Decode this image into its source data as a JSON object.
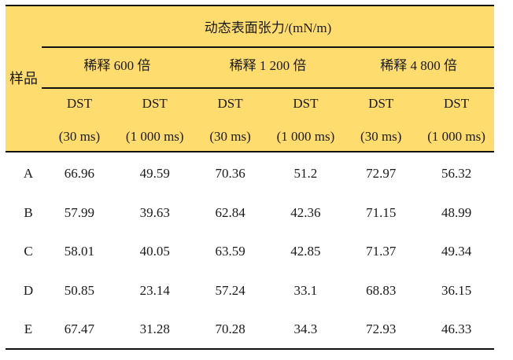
{
  "table": {
    "title": "动态表面张力/(mN/m)",
    "row_header": "样品",
    "groups": [
      "稀释  600 倍",
      "稀释 1 200 倍",
      "稀释 4 800 倍"
    ],
    "subheaders": [
      {
        "line1": "DST",
        "line2": "(30 ms)"
      },
      {
        "line1": "DST",
        "line2": "(1 000 ms)"
      },
      {
        "line1": "DST",
        "line2": "(30 ms)"
      },
      {
        "line1": "DST",
        "line2": "(1 000 ms)"
      },
      {
        "line1": "DST",
        "line2": "(30 ms)"
      },
      {
        "line1": "DST",
        "line2": "(1 000 ms)"
      }
    ],
    "rows": [
      {
        "sample": "A",
        "values": [
          "66.96",
          "49.59",
          "70.36",
          "51.2",
          "72.97",
          "56.32"
        ]
      },
      {
        "sample": "B",
        "values": [
          "57.99",
          "39.63",
          "62.84",
          "42.36",
          "71.15",
          "48.99"
        ]
      },
      {
        "sample": "C",
        "values": [
          "58.01",
          "40.05",
          "63.59",
          "42.85",
          "71.37",
          "49.34"
        ]
      },
      {
        "sample": "D",
        "values": [
          "50.85",
          "23.14",
          "57.24",
          "33.1",
          "68.83",
          "36.15"
        ]
      },
      {
        "sample": "E",
        "values": [
          "67.47",
          "31.28",
          "70.28",
          "34.3",
          "72.93",
          "46.33"
        ]
      }
    ]
  },
  "colors": {
    "header_bg": "#FFDC6E",
    "rule": "#111111"
  }
}
